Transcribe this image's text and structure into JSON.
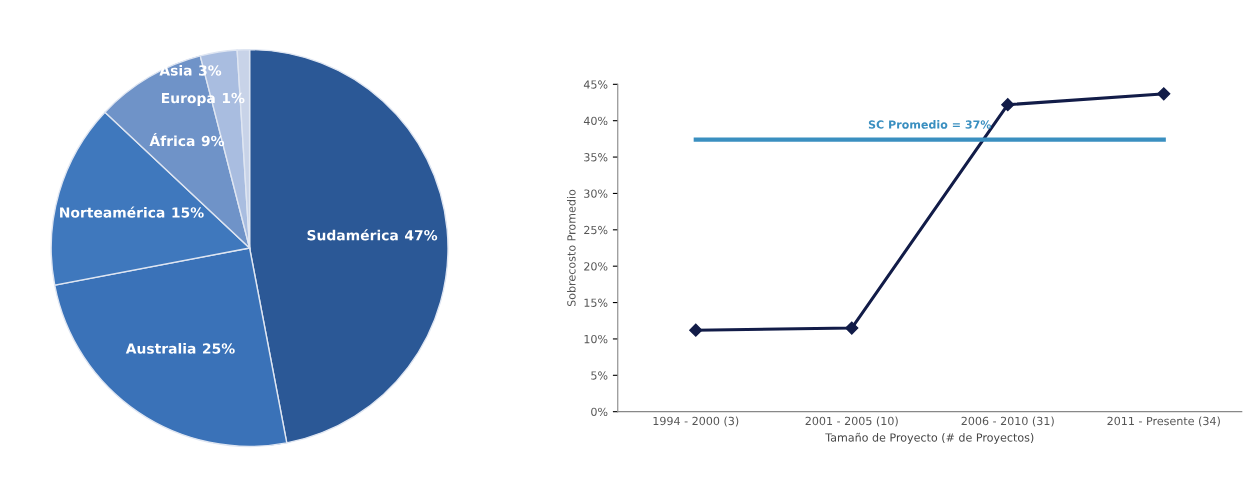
{
  "chart_data": [
    {
      "type": "pie",
      "categories": [
        "Sudamérica",
        "Australia",
        "Norteamérica",
        "África",
        "Asia",
        "Europa"
      ],
      "values": [
        47,
        25,
        15,
        9,
        3,
        1
      ],
      "value_labels": [
        "47%",
        "25%",
        "15%",
        "9%",
        "3%",
        "1%"
      ],
      "colors": [
        "#2b5896",
        "#3a72b8",
        "#3f78bd",
        "#6f93c8",
        "#a9bde0",
        "#c8d3e8"
      ]
    },
    {
      "type": "line",
      "categories": [
        "1994 - 2000 (3)",
        "2001 - 2005 (10)",
        "2006 - 2010 (31)",
        "2011 - Presente (34)"
      ],
      "series": [
        {
          "color": "#121c48",
          "values": [
            11.2,
            11.5,
            42.2,
            43.7
          ]
        }
      ],
      "marker": "diamond",
      "xlabel": "Tamaño de Proyecto (# de Proyectos)",
      "ylabel": "Sobrecosto Promedio",
      "ylim": [
        0,
        45
      ],
      "yticks": [
        {
          "value": 0,
          "label": "0%"
        },
        {
          "value": 5,
          "label": "5%"
        },
        {
          "value": 10,
          "label": "10%"
        },
        {
          "value": 15,
          "label": "15%"
        },
        {
          "value": 20,
          "label": "20%"
        },
        {
          "value": 25,
          "label": "25%"
        },
        {
          "value": 30,
          "label": "30%"
        },
        {
          "value": 35,
          "label": "35%"
        },
        {
          "value": 40,
          "label": "40%"
        },
        {
          "value": 45,
          "label": "45%"
        }
      ],
      "ref_lines": [
        {
          "axis": "y",
          "value": 37.4,
          "label": "SC Promedio = 37%",
          "color": "#3a8fc0"
        }
      ],
      "grid": false,
      "legend": false
    }
  ]
}
